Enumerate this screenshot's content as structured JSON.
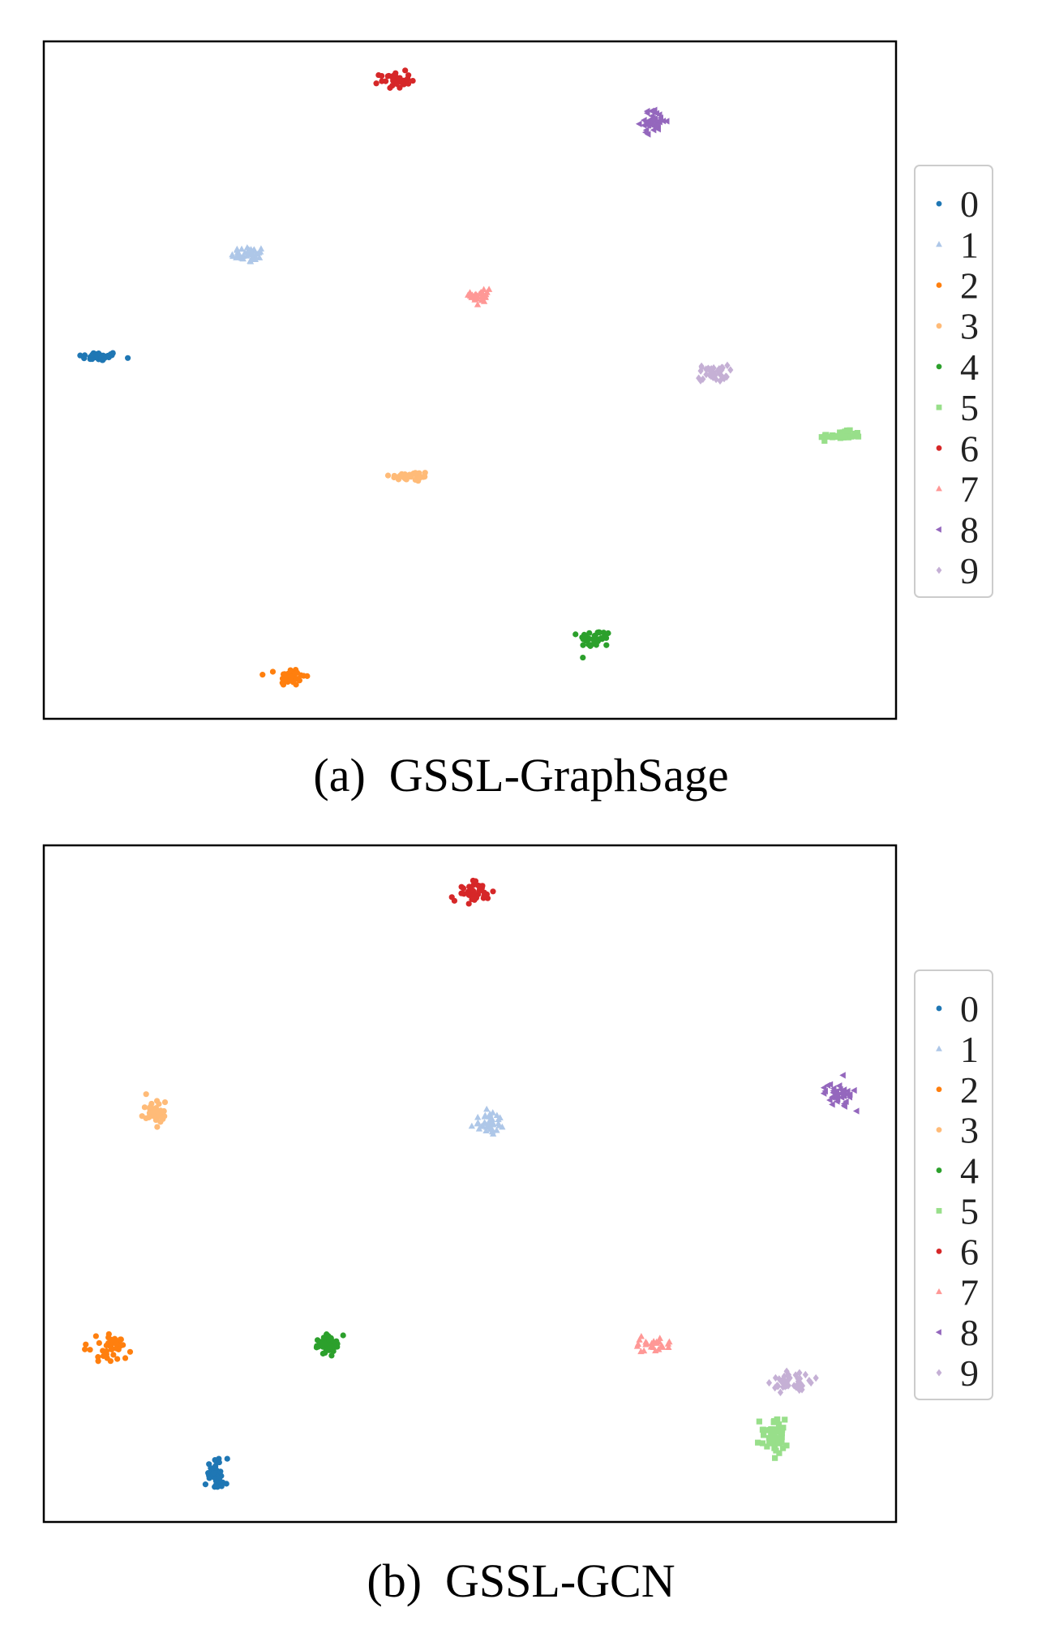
{
  "colors": {
    "0": "#1f77b4",
    "1": "#aec7e8",
    "2": "#ff7f0e",
    "3": "#ffbb78",
    "4": "#2ca02c",
    "5": "#98df8a",
    "6": "#d62728",
    "7": "#ff9896",
    "8": "#9467bd",
    "9": "#c5b0d5"
  },
  "legend": {
    "labels": [
      "0",
      "1",
      "2",
      "3",
      "4",
      "5",
      "6",
      "7",
      "8",
      "9"
    ],
    "markers": [
      "circle",
      "triangle-up",
      "circle",
      "circle",
      "circle",
      "square",
      "circle",
      "triangle-up",
      "triangle-left",
      "diamond"
    ]
  },
  "captions": {
    "a": "(a)  GSSL-GraphSage",
    "b": "(b)  GSSL-GCN"
  },
  "chart_data": [
    {
      "type": "scatter",
      "title": "",
      "xlabel": "",
      "ylabel": "",
      "xlim": [
        0,
        100
      ],
      "ylim": [
        0,
        100
      ],
      "ticks": "none",
      "legend_position": "right",
      "clusters": [
        {
          "label": "0",
          "marker": "circle",
          "center": [
            6.5,
            53.5
          ],
          "spread": [
            2.2,
            0.6
          ],
          "count": 40
        },
        {
          "label": "1",
          "marker": "triangle-up",
          "center": [
            24.0,
            68.5
          ],
          "spread": [
            1.8,
            1.1
          ],
          "count": 40
        },
        {
          "label": "2",
          "marker": "circle",
          "center": [
            29.0,
            6.2
          ],
          "spread": [
            1.5,
            1.2
          ],
          "count": 40
        },
        {
          "label": "3",
          "marker": "circle",
          "center": [
            43.0,
            35.8
          ],
          "spread": [
            2.2,
            0.7
          ],
          "count": 40
        },
        {
          "label": "4",
          "marker": "circle",
          "center": [
            64.7,
            11.8
          ],
          "spread": [
            1.7,
            1.2
          ],
          "count": 35
        },
        {
          "label": "5",
          "marker": "square",
          "center": [
            93.5,
            41.8
          ],
          "spread": [
            2.2,
            0.6
          ],
          "count": 40
        },
        {
          "label": "6",
          "marker": "circle",
          "center": [
            41.2,
            94.3
          ],
          "spread": [
            1.6,
            1.1
          ],
          "count": 35
        },
        {
          "label": "7",
          "marker": "triangle-up",
          "center": [
            51.3,
            62.5
          ],
          "spread": [
            1.1,
            1.6
          ],
          "count": 25
        },
        {
          "label": "8",
          "marker": "triangle-left",
          "center": [
            71.5,
            88.2
          ],
          "spread": [
            1.4,
            1.5
          ],
          "count": 40
        },
        {
          "label": "9",
          "marker": "diamond",
          "center": [
            78.5,
            51.0
          ],
          "spread": [
            1.6,
            1.1
          ],
          "count": 40
        }
      ]
    },
    {
      "type": "scatter",
      "title": "",
      "xlabel": "",
      "ylabel": "",
      "xlim": [
        0,
        100
      ],
      "ylim": [
        0,
        100
      ],
      "ticks": "none",
      "legend_position": "right",
      "clusters": [
        {
          "label": "0",
          "marker": "circle",
          "center": [
            20.2,
            7.0
          ],
          "spread": [
            1.1,
            2.2
          ],
          "count": 45
        },
        {
          "label": "1",
          "marker": "triangle-up",
          "center": [
            52.2,
            58.8
          ],
          "spread": [
            1.6,
            1.3
          ],
          "count": 40
        },
        {
          "label": "2",
          "marker": "circle",
          "center": [
            7.8,
            25.8
          ],
          "spread": [
            2.3,
            1.8
          ],
          "count": 40
        },
        {
          "label": "3",
          "marker": "circle",
          "center": [
            13.0,
            60.5
          ],
          "spread": [
            1.4,
            1.6
          ],
          "count": 40
        },
        {
          "label": "4",
          "marker": "circle",
          "center": [
            33.3,
            26.2
          ],
          "spread": [
            1.7,
            1.2
          ],
          "count": 40
        },
        {
          "label": "5",
          "marker": "square",
          "center": [
            85.8,
            12.6
          ],
          "spread": [
            1.6,
            2.3
          ],
          "count": 55
        },
        {
          "label": "6",
          "marker": "circle",
          "center": [
            50.3,
            93.1
          ],
          "spread": [
            1.7,
            1.5
          ],
          "count": 40
        },
        {
          "label": "7",
          "marker": "triangle-up",
          "center": [
            71.3,
            26.2
          ],
          "spread": [
            2.6,
            1.2
          ],
          "count": 25
        },
        {
          "label": "8",
          "marker": "triangle-left",
          "center": [
            93.3,
            63.3
          ],
          "spread": [
            1.4,
            1.4
          ],
          "count": 45
        },
        {
          "label": "9",
          "marker": "diamond",
          "center": [
            87.7,
            20.7
          ],
          "spread": [
            2.0,
            1.6
          ],
          "count": 45
        }
      ]
    }
  ]
}
